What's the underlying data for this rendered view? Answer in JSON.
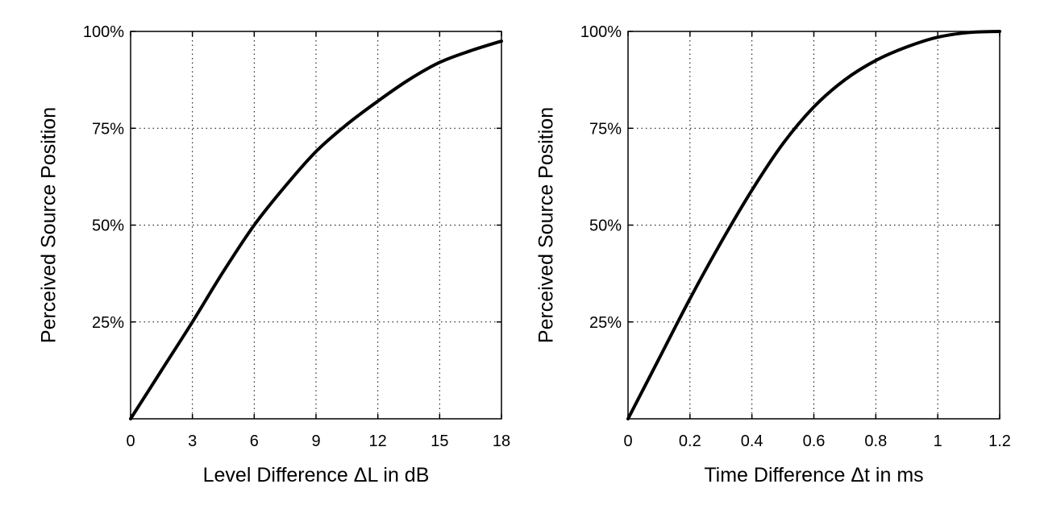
{
  "chart_data": [
    {
      "type": "line",
      "xlabel": "Level Difference ΔL in dB",
      "ylabel": "Perceived Source Position",
      "xlim": [
        0,
        18
      ],
      "ylim": [
        0,
        100
      ],
      "xticks": [
        0,
        3,
        6,
        9,
        12,
        15,
        18
      ],
      "xtick_labels": [
        "0",
        "3",
        "6",
        "9",
        "12",
        "15",
        "18"
      ],
      "yticks": [
        25,
        50,
        75,
        100
      ],
      "ytick_labels": [
        "25%",
        "50%",
        "75%",
        "100%"
      ],
      "grid": true,
      "series": [
        {
          "x": [
            0,
            1.5,
            3,
            4.5,
            6,
            7.5,
            9,
            10.5,
            12,
            13.5,
            15,
            16.5,
            18
          ],
          "y": [
            0,
            12.5,
            25,
            38,
            50,
            60,
            69,
            76,
            82,
            87.5,
            92,
            95,
            97.5
          ]
        }
      ]
    },
    {
      "type": "line",
      "xlabel": "Time Difference Δt in ms",
      "ylabel": "Perceived Source Position",
      "xlim": [
        0,
        1.2
      ],
      "ylim": [
        0,
        100
      ],
      "xticks": [
        0,
        0.2,
        0.4,
        0.6,
        0.8,
        1,
        1.2
      ],
      "xtick_labels": [
        "0",
        "0.2",
        "0.4",
        "0.6",
        "0.8",
        "1",
        "1.2"
      ],
      "yticks": [
        25,
        50,
        75,
        100
      ],
      "ytick_labels": [
        "25%",
        "50%",
        "75%",
        "100%"
      ],
      "grid": true,
      "series": [
        {
          "x": [
            0,
            0.1,
            0.2,
            0.3,
            0.4,
            0.5,
            0.6,
            0.7,
            0.8,
            0.9,
            1.0,
            1.1,
            1.2
          ],
          "y": [
            0,
            15.5,
            31,
            45.5,
            59,
            71,
            80.5,
            87.5,
            92.5,
            96,
            98.5,
            99.7,
            100
          ]
        }
      ]
    }
  ]
}
